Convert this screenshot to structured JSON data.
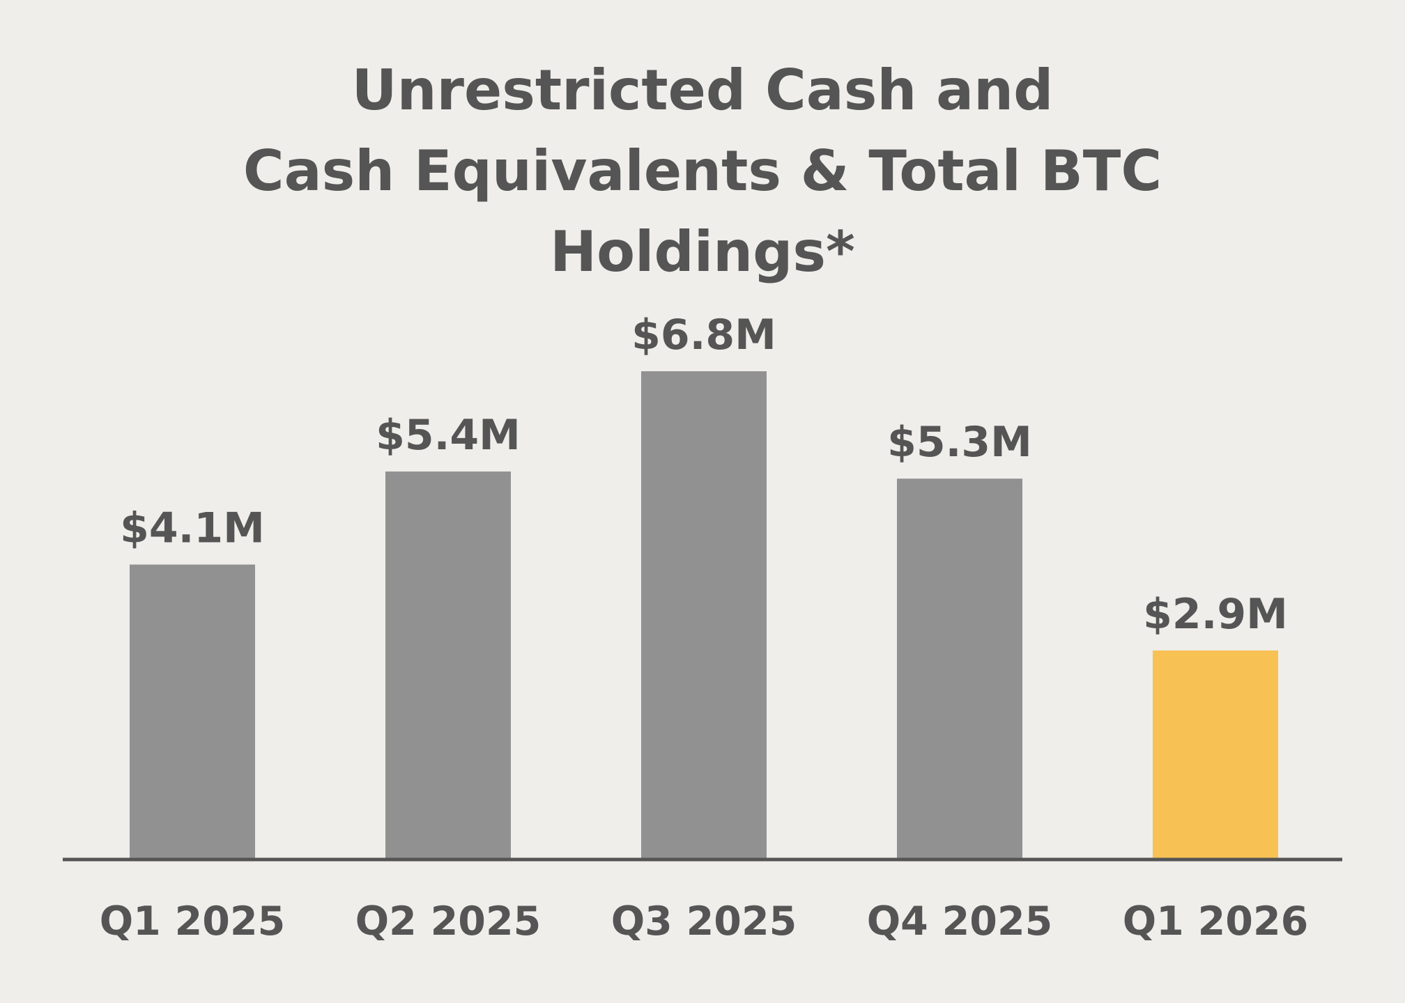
{
  "chart_data": {
    "type": "bar",
    "title_lines": [
      "Unrestricted Cash and",
      "Cash Equivalents & Total BTC",
      "Holdings*"
    ],
    "categories": [
      "Q1 2025",
      "Q2 2025",
      "Q3 2025",
      "Q4 2025",
      "Q1 2026"
    ],
    "values": [
      4.1,
      5.4,
      6.8,
      5.3,
      2.9
    ],
    "value_labels": [
      "$4.1M",
      "$5.4M",
      "$6.8M",
      "$5.3M",
      "$2.9M"
    ],
    "unit": "$M",
    "ylim": [
      0,
      6.8
    ],
    "grid": false,
    "colors": {
      "default_bar": "#919191",
      "highlight_bar": "#f8c153",
      "text": "#555555",
      "axis": "#555555",
      "background": "#efeeea"
    },
    "highlight_index": 4
  }
}
